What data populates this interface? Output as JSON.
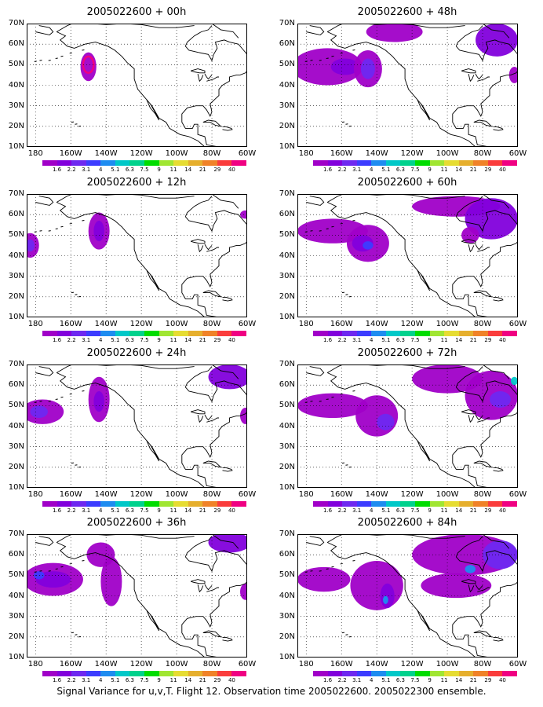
{
  "caption": "Signal Variance for u,v,T. Flight 12. Observation time 2005022600. 2005022300 ensemble.",
  "lat_labels": [
    "70N",
    "60N",
    "50N",
    "40N",
    "30N",
    "20N",
    "10N"
  ],
  "lon_labels": [
    "180",
    "160W",
    "140W",
    "120W",
    "100W",
    "80W",
    "60W"
  ],
  "colorbar": {
    "labels": [
      "1.6",
      "2.2",
      "3.1",
      "4",
      "5.1",
      "6.3",
      "7.5",
      "9",
      "11",
      "14",
      "21",
      "29",
      "40"
    ],
    "colors": [
      "#a000c8",
      "#8200dc",
      "#6e28f0",
      "#3c3cff",
      "#1e8cf0",
      "#00c8c8",
      "#00d28c",
      "#00dc00",
      "#a0e632",
      "#e6dc32",
      "#e6af2d",
      "#f08228",
      "#fa3c3c",
      "#f00082"
    ]
  },
  "extent": {
    "lon_min": -185,
    "lon_max": -60,
    "lat_min": 10,
    "lat_max": 70
  },
  "panels": [
    {
      "title": "2005022600 + 00h",
      "blobs": [
        {
          "lon": -150,
          "lat": 49,
          "rx": 4.5,
          "ry": 7,
          "level": 0
        },
        {
          "lon": -150,
          "lat": 50,
          "rx": 3,
          "ry": 4,
          "level": 13,
          "ring": true
        }
      ]
    },
    {
      "title": "2005022600 + 12h",
      "blobs": [
        {
          "lon": -183,
          "lat": 45,
          "rx": 5,
          "ry": 6,
          "level": 0
        },
        {
          "lon": -183,
          "lat": 45,
          "rx": 2.5,
          "ry": 3,
          "level": 2
        },
        {
          "lon": -144,
          "lat": 52,
          "rx": 6,
          "ry": 9,
          "level": 0
        },
        {
          "lon": -144,
          "lat": 52,
          "rx": 3,
          "ry": 5,
          "level": 1
        },
        {
          "lon": -61,
          "lat": 60,
          "rx": 3,
          "ry": 2,
          "level": 0
        }
      ]
    },
    {
      "title": "2005022600 + 24h",
      "blobs": [
        {
          "lon": -176,
          "lat": 47,
          "rx": 12,
          "ry": 6,
          "level": 0
        },
        {
          "lon": -178,
          "lat": 47,
          "rx": 5,
          "ry": 3,
          "level": 2
        },
        {
          "lon": -144,
          "lat": 53,
          "rx": 6,
          "ry": 11,
          "level": 0
        },
        {
          "lon": -144,
          "lat": 52,
          "rx": 3,
          "ry": 5,
          "level": 1
        },
        {
          "lon": -70,
          "lat": 64,
          "rx": 12,
          "ry": 6,
          "level": 1
        },
        {
          "lon": -61,
          "lat": 45,
          "rx": 3,
          "ry": 4,
          "level": 0
        }
      ]
    },
    {
      "title": "2005022600 + 36h",
      "blobs": [
        {
          "lon": -170,
          "lat": 48,
          "rx": 17,
          "ry": 8,
          "level": 0
        },
        {
          "lon": -170,
          "lat": 48,
          "rx": 10,
          "ry": 4,
          "level": 1
        },
        {
          "lon": -178,
          "lat": 50,
          "rx": 3,
          "ry": 2,
          "level": 3
        },
        {
          "lon": -143,
          "lat": 60,
          "rx": 8,
          "ry": 6,
          "level": 0
        },
        {
          "lon": -137,
          "lat": 47,
          "rx": 6,
          "ry": 12,
          "level": 0
        },
        {
          "lon": -70,
          "lat": 66,
          "rx": 12,
          "ry": 5,
          "level": 1
        },
        {
          "lon": -61,
          "lat": 42,
          "rx": 3,
          "ry": 4,
          "level": 0
        }
      ]
    },
    {
      "title": "2005022600 + 48h",
      "blobs": [
        {
          "lon": -168,
          "lat": 49,
          "rx": 20,
          "ry": 9,
          "level": 0
        },
        {
          "lon": -158,
          "lat": 49,
          "rx": 8,
          "ry": 4,
          "level": 1
        },
        {
          "lon": -145,
          "lat": 48,
          "rx": 8,
          "ry": 9,
          "level": 0
        },
        {
          "lon": -145,
          "lat": 48,
          "rx": 4,
          "ry": 5,
          "level": 2
        },
        {
          "lon": -130,
          "lat": 66,
          "rx": 16,
          "ry": 5,
          "level": 0
        },
        {
          "lon": -72,
          "lat": 62,
          "rx": 12,
          "ry": 8,
          "level": 1
        },
        {
          "lon": -62,
          "lat": 45,
          "rx": 3,
          "ry": 4,
          "level": 0
        }
      ]
    },
    {
      "title": "2005022600 + 60h",
      "blobs": [
        {
          "lon": -165,
          "lat": 52,
          "rx": 20,
          "ry": 6,
          "level": 0
        },
        {
          "lon": -145,
          "lat": 46,
          "rx": 12,
          "ry": 9,
          "level": 0
        },
        {
          "lon": -148,
          "lat": 46,
          "rx": 6,
          "ry": 4,
          "level": 1
        },
        {
          "lon": -145,
          "lat": 45,
          "rx": 3,
          "ry": 2,
          "level": 3
        },
        {
          "lon": -95,
          "lat": 64,
          "rx": 25,
          "ry": 5,
          "level": 0
        },
        {
          "lon": -75,
          "lat": 58,
          "rx": 15,
          "ry": 10,
          "level": 1
        },
        {
          "lon": -87,
          "lat": 50,
          "rx": 5,
          "ry": 4,
          "level": 0
        }
      ]
    },
    {
      "title": "2005022600 + 72h",
      "blobs": [
        {
          "lon": -165,
          "lat": 50,
          "rx": 20,
          "ry": 6,
          "level": 0
        },
        {
          "lon": -140,
          "lat": 45,
          "rx": 12,
          "ry": 10,
          "level": 0
        },
        {
          "lon": -135,
          "lat": 42,
          "rx": 5,
          "ry": 4,
          "level": 2
        },
        {
          "lon": -100,
          "lat": 63,
          "rx": 20,
          "ry": 7,
          "level": 0
        },
        {
          "lon": -75,
          "lat": 55,
          "rx": 15,
          "ry": 12,
          "level": 0
        },
        {
          "lon": -70,
          "lat": 53,
          "rx": 6,
          "ry": 4,
          "level": 2
        },
        {
          "lon": -62,
          "lat": 62,
          "rx": 2,
          "ry": 2,
          "level": 5
        }
      ]
    },
    {
      "title": "2005022600 + 84h",
      "blobs": [
        {
          "lon": -170,
          "lat": 48,
          "rx": 15,
          "ry": 6,
          "level": 0
        },
        {
          "lon": -140,
          "lat": 45,
          "rx": 15,
          "ry": 12,
          "level": 0
        },
        {
          "lon": -134,
          "lat": 40,
          "rx": 4,
          "ry": 6,
          "level": 1
        },
        {
          "lon": -135,
          "lat": 38,
          "rx": 1.5,
          "ry": 2,
          "level": 4
        },
        {
          "lon": -90,
          "lat": 60,
          "rx": 30,
          "ry": 10,
          "level": 0
        },
        {
          "lon": -70,
          "lat": 60,
          "rx": 10,
          "ry": 7,
          "level": 2
        },
        {
          "lon": -95,
          "lat": 45,
          "rx": 20,
          "ry": 6,
          "level": 0
        },
        {
          "lon": -87,
          "lat": 53,
          "rx": 3,
          "ry": 2,
          "level": 4
        }
      ]
    }
  ]
}
